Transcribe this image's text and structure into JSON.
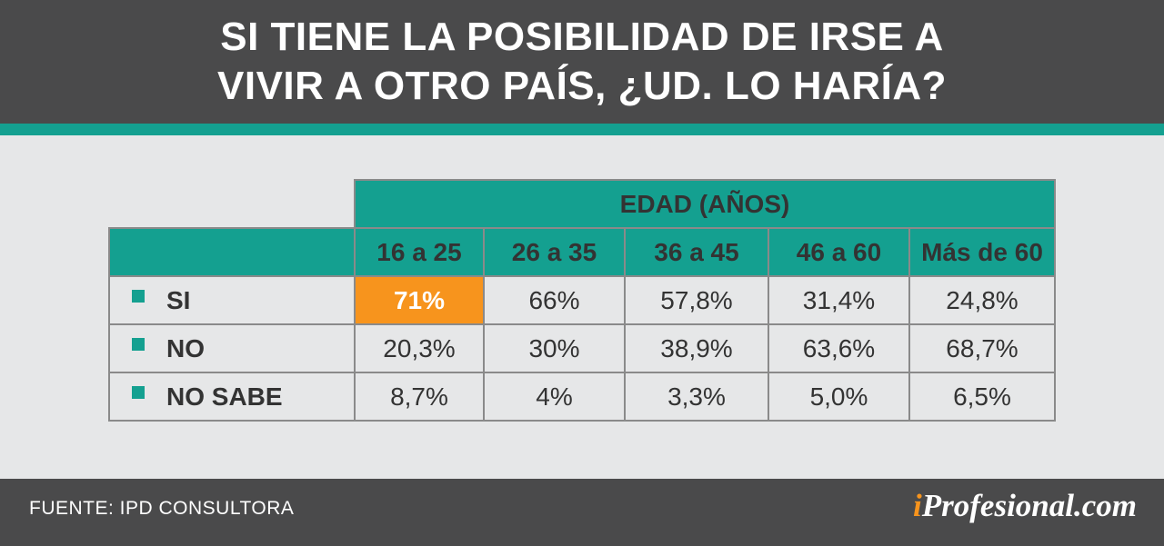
{
  "title": "SI TIENE LA POSIBILIDAD DE IRSE A VIVIR A OTRO PAÍS, ¿UD. LO HARÍA?",
  "colors": {
    "header_bg": "#4a4a4b",
    "accent_teal": "#14a090",
    "highlight_orange": "#f7941d",
    "page_bg": "#e6e7e8"
  },
  "footer": {
    "source": "FUENTE: IPD CONSULTORA",
    "brand_mark": "i",
    "brand_rest": "Profesional.com"
  },
  "chart_data": {
    "type": "table",
    "group_header": "EDAD (AÑOS)",
    "columns": [
      "16 a 25",
      "26 a 35",
      "36 a 45",
      "46 a 60",
      "Más de 60"
    ],
    "rows": [
      {
        "label": "SI",
        "values": [
          "71%",
          "66%",
          "57,8%",
          "31,4%",
          "24,8%"
        ],
        "highlight": "16 a 25"
      },
      {
        "label": "NO",
        "values": [
          "20,3%",
          "30%",
          "38,9%",
          "63,6%",
          "68,7%"
        ]
      },
      {
        "label": "NO SABE",
        "values": [
          "8,7%",
          "4%",
          "3,3%",
          "5,0%",
          "6,5%"
        ]
      }
    ]
  }
}
